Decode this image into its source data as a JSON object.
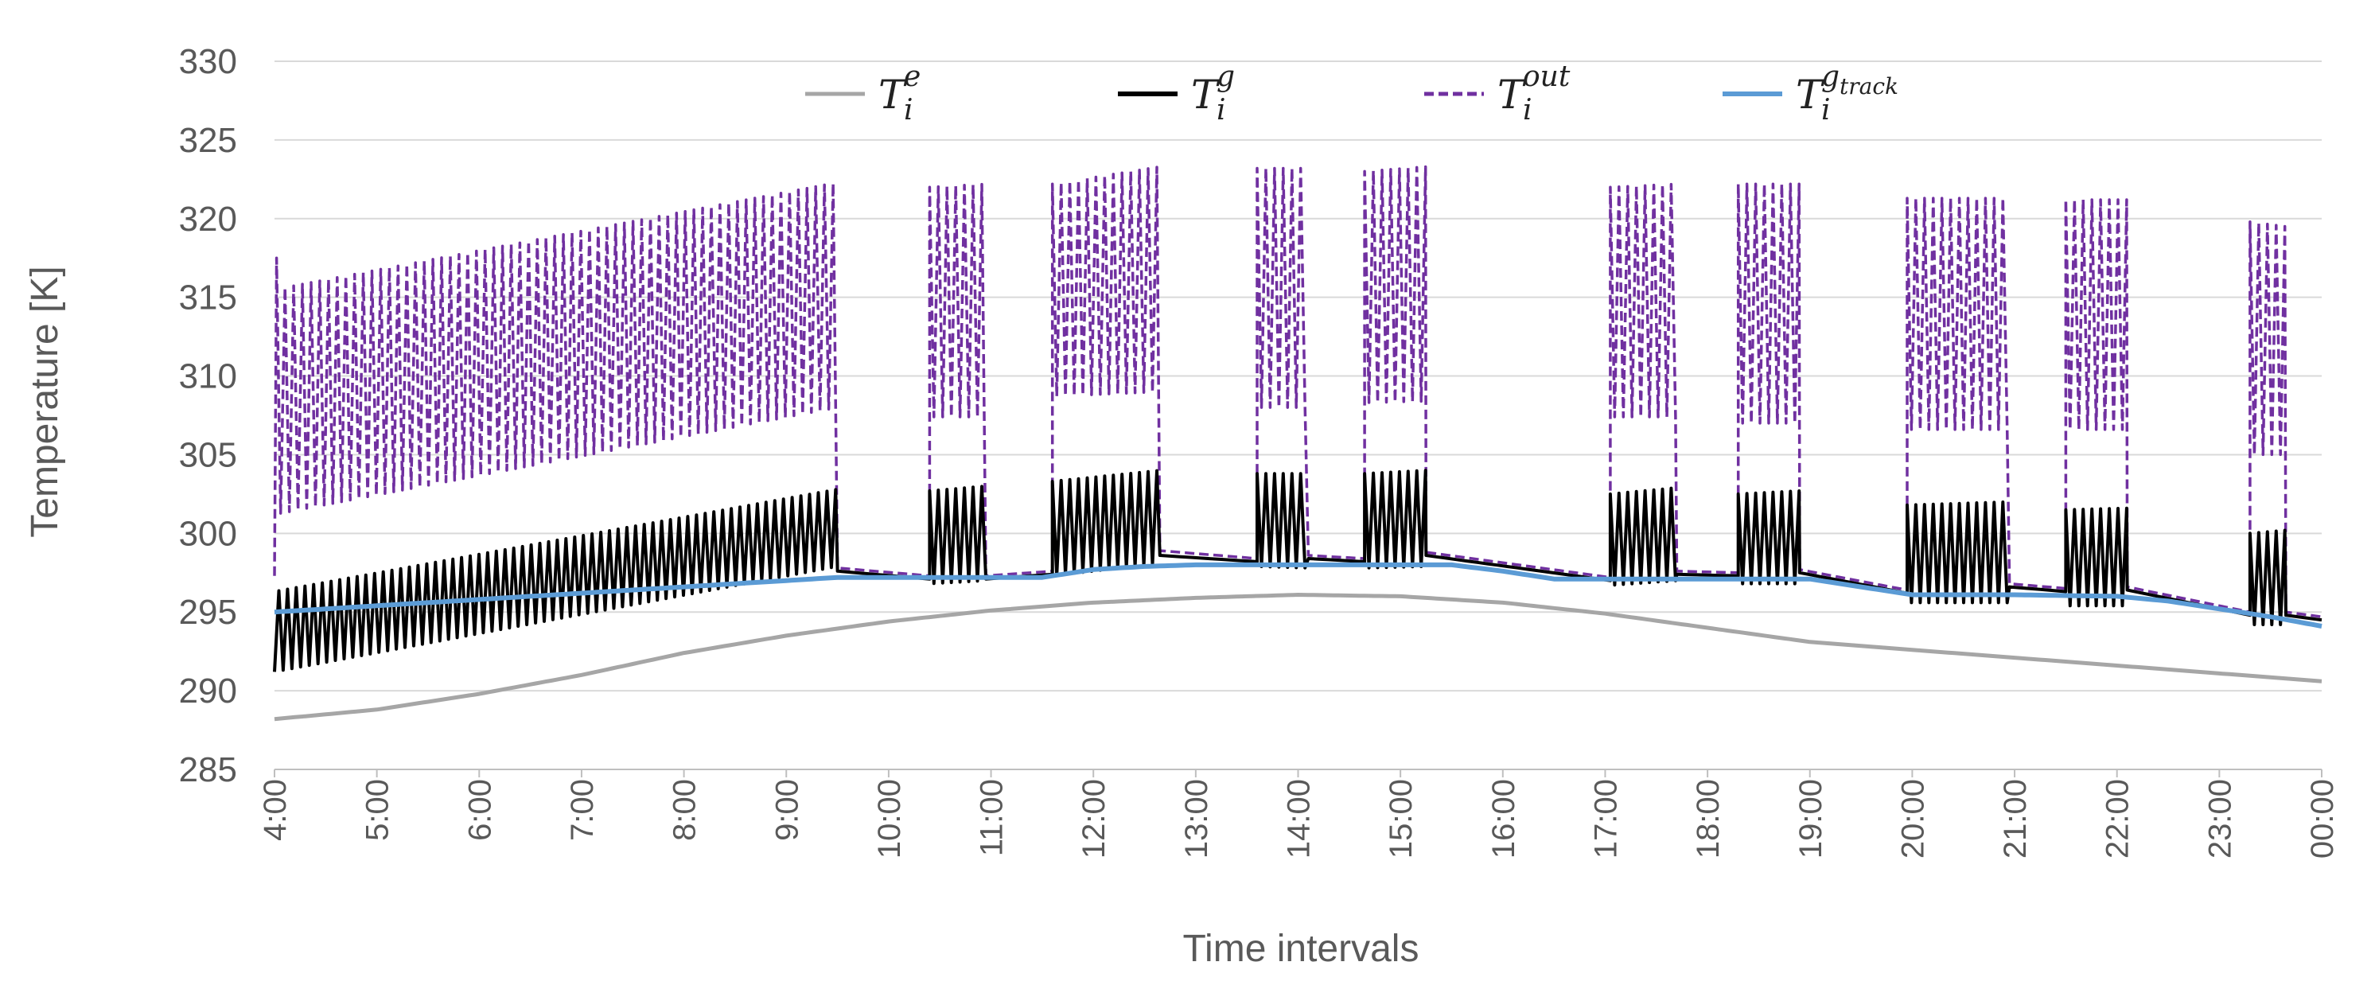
{
  "chart_data": {
    "type": "line",
    "title": "",
    "xlabel": "Time intervals",
    "ylabel": "Temperature [K]",
    "ylim": [
      285,
      330
    ],
    "yticks": [
      285,
      290,
      295,
      300,
      305,
      310,
      315,
      320,
      325,
      330
    ],
    "xlim": [
      4,
      24
    ],
    "xticks": [
      "4:00",
      "5:00",
      "6:00",
      "7:00",
      "8:00",
      "9:00",
      "10:00",
      "11:00",
      "12:00",
      "13:00",
      "14:00",
      "15:00",
      "16:00",
      "17:00",
      "18:00",
      "19:00",
      "20:00",
      "21:00",
      "22:00",
      "23:00",
      "00:00"
    ],
    "grid": "horizontal",
    "legend_position": "top",
    "series": [
      {
        "name": "T_i^e",
        "base": "T",
        "sub": "i",
        "sup": "e",
        "color": "#a6a6a6",
        "style": "solid",
        "x": [
          4,
          5,
          6,
          7,
          8,
          9,
          10,
          11,
          12,
          13,
          14,
          15,
          16,
          17,
          18,
          19,
          20,
          21,
          22,
          23,
          24
        ],
        "values": [
          288.2,
          288.8,
          289.8,
          291.0,
          292.4,
          293.5,
          294.4,
          295.1,
          295.6,
          295.9,
          296.1,
          296.0,
          295.6,
          294.9,
          294.0,
          293.1,
          292.6,
          292.1,
          291.6,
          291.1,
          290.6
        ]
      },
      {
        "name": "T_i^g",
        "base": "T",
        "sub": "i",
        "sup": "g",
        "color": "#000000",
        "style": "solid",
        "active_intervals": [
          [
            4.0,
            9.5
          ],
          [
            10.4,
            10.95
          ],
          [
            11.6,
            12.65
          ],
          [
            13.6,
            14.1
          ],
          [
            14.65,
            15.25
          ],
          [
            17.05,
            17.7
          ],
          [
            18.3,
            18.9
          ],
          [
            19.95,
            20.95
          ],
          [
            21.5,
            22.1
          ],
          [
            23.3,
            23.65
          ]
        ],
        "upper_envelope": {
          "x": [
            4.0,
            9.5,
            10.4,
            10.95,
            11.6,
            12.65,
            13.6,
            14.1,
            14.65,
            15.25,
            17.05,
            17.7,
            18.3,
            18.9,
            19.95,
            20.95,
            21.5,
            22.1,
            23.3,
            23.65
          ],
          "values": [
            296.3,
            302.8,
            302.7,
            303.0,
            303.3,
            304.0,
            303.8,
            303.8,
            303.8,
            304.0,
            302.5,
            302.9,
            302.5,
            302.7,
            301.8,
            302.0,
            301.5,
            301.6,
            300.0,
            300.2
          ]
        },
        "lower_envelope": {
          "x": [
            4.0,
            9.5,
            10.4,
            10.95,
            11.6,
            12.65,
            13.6,
            14.1,
            14.65,
            15.25,
            17.05,
            17.7,
            18.3,
            18.9,
            19.95,
            20.95,
            21.5,
            22.1,
            23.3,
            23.65
          ],
          "values": [
            291.2,
            297.9,
            296.8,
            297.0,
            297.3,
            298.1,
            297.9,
            297.8,
            297.8,
            297.9,
            296.7,
            297.0,
            296.8,
            296.8,
            295.6,
            295.6,
            295.4,
            295.4,
            294.2,
            294.2
          ]
        },
        "idle_envelope": {
          "x": [
            9.5,
            10.4,
            10.95,
            11.6,
            12.65,
            13.6,
            14.1,
            14.65,
            15.25,
            17.05,
            17.7,
            18.3,
            18.9,
            19.95,
            20.95,
            21.5,
            22.1,
            23.3,
            23.65,
            24.0
          ],
          "values": [
            297.6,
            297.1,
            297.1,
            297.4,
            298.6,
            298.2,
            298.4,
            298.2,
            298.6,
            297.0,
            297.4,
            297.3,
            297.5,
            296.2,
            296.6,
            296.3,
            296.4,
            294.8,
            294.8,
            294.5
          ]
        }
      },
      {
        "name": "T_i^out",
        "base": "T",
        "sub": "i",
        "sup": "out",
        "color": "#7030a0",
        "style": "dashed",
        "active_intervals": [
          [
            4.0,
            9.5
          ],
          [
            10.4,
            10.95
          ],
          [
            11.6,
            12.65
          ],
          [
            13.6,
            14.1
          ],
          [
            14.65,
            15.25
          ],
          [
            17.05,
            17.7
          ],
          [
            18.3,
            18.9
          ],
          [
            19.95,
            20.95
          ],
          [
            21.5,
            22.1
          ],
          [
            23.3,
            23.65
          ]
        ],
        "upper_envelope": {
          "x": [
            4.0,
            9.5,
            10.4,
            10.95,
            11.6,
            12.65,
            13.6,
            14.1,
            14.65,
            15.25,
            17.05,
            17.7,
            18.3,
            18.9,
            19.95,
            20.95,
            21.5,
            22.1,
            23.3,
            23.65
          ],
          "values": [
            315.5,
            322.3,
            322.0,
            322.2,
            322.2,
            323.3,
            323.2,
            323.2,
            323.0,
            323.3,
            322.0,
            322.2,
            322.2,
            322.2,
            321.3,
            321.3,
            321.2,
            321.2,
            319.8,
            319.5
          ]
        },
        "lower_envelope": {
          "x": [
            4.0,
            9.5,
            10.4,
            10.95,
            11.6,
            12.65,
            13.6,
            14.1,
            14.65,
            15.25,
            17.05,
            17.7,
            18.3,
            18.9,
            19.95,
            20.95,
            21.5,
            22.1,
            23.3,
            23.65
          ],
          "values": [
            301.2,
            308.0,
            307.4,
            307.4,
            308.7,
            309.0,
            308.0,
            308.0,
            308.3,
            308.4,
            307.4,
            307.4,
            307.0,
            307.0,
            306.6,
            306.6,
            306.6,
            306.6,
            305.0,
            305.0
          ]
        },
        "idle_envelope": {
          "x": [
            9.5,
            10.4,
            10.95,
            11.6,
            12.65,
            13.6,
            14.1,
            14.65,
            15.25,
            17.05,
            17.7,
            18.3,
            18.9,
            19.95,
            20.95,
            21.5,
            22.1,
            23.3,
            23.65,
            24.0
          ],
          "values": [
            297.8,
            297.3,
            297.3,
            297.6,
            298.9,
            298.4,
            298.6,
            298.4,
            298.8,
            297.2,
            297.6,
            297.5,
            297.7,
            296.4,
            296.8,
            296.5,
            296.6,
            295.0,
            295.0,
            294.7
          ]
        },
        "initial_spike": 317.5
      },
      {
        "name": "T_i^g_track",
        "base": "T",
        "sub": "i",
        "sup": "g",
        "sup_sub": "track",
        "color": "#5b9bd5",
        "style": "solid",
        "x": [
          4.0,
          5.0,
          6.0,
          7.0,
          8.0,
          9.0,
          9.5,
          10.5,
          11.5,
          12.0,
          12.5,
          13.0,
          14.0,
          15.0,
          15.5,
          16.0,
          16.5,
          17.0,
          17.5,
          18.0,
          18.5,
          19.0,
          19.5,
          20.0,
          20.5,
          21.0,
          22.0,
          22.5,
          23.0,
          23.5,
          24.0
        ],
        "values": [
          295.0,
          295.4,
          295.8,
          296.2,
          296.6,
          297.0,
          297.2,
          297.2,
          297.2,
          297.7,
          297.9,
          298.0,
          298.0,
          298.0,
          298.0,
          297.6,
          297.1,
          297.1,
          297.1,
          297.1,
          297.1,
          297.1,
          296.6,
          296.1,
          296.1,
          296.1,
          296.0,
          295.7,
          295.2,
          294.7,
          294.1
        ]
      }
    ]
  }
}
